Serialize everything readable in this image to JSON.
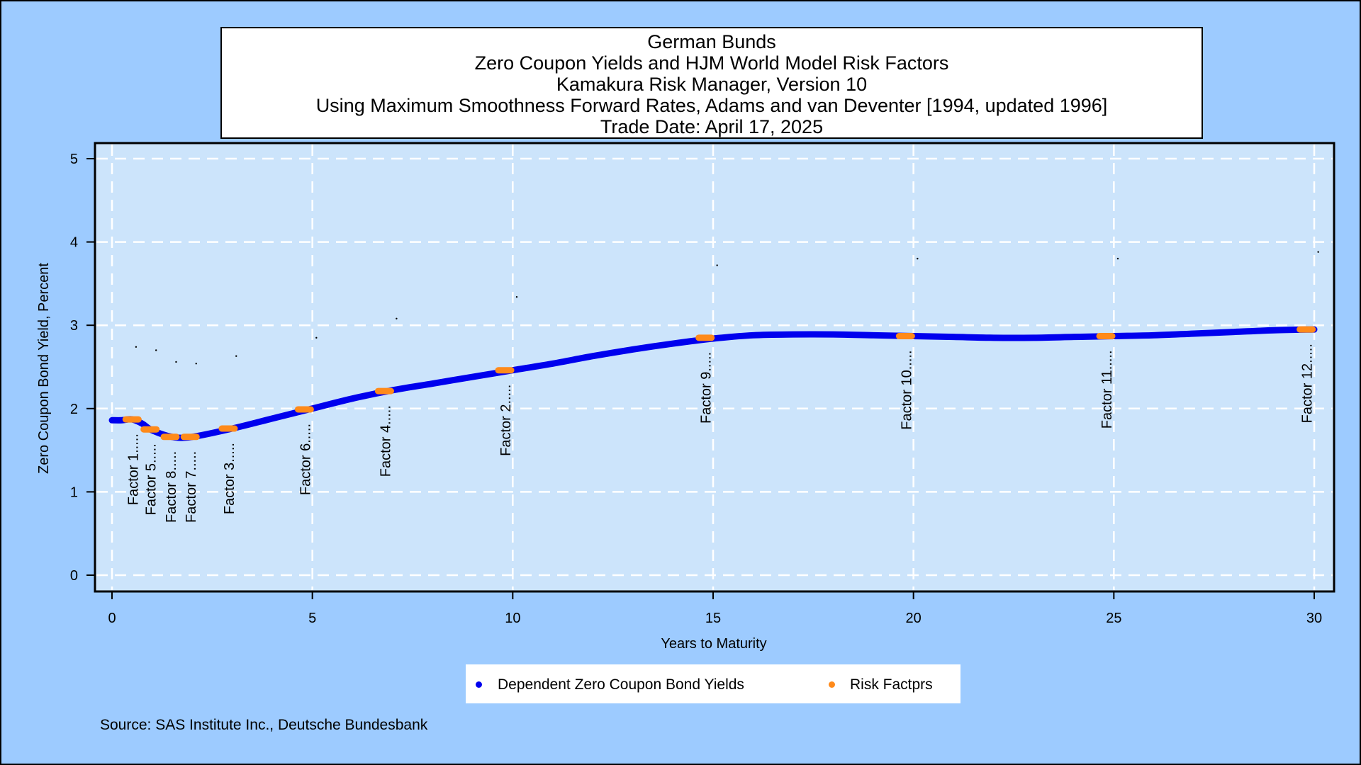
{
  "chart_data": {
    "type": "line",
    "title": [
      "German Bunds",
      "Zero Coupon Yields and HJM World Model Risk Factors",
      "Kamakura Risk Manager, Version 10",
      "Using Maximum Smoothness Forward Rates, Adams and van Deventer [1994, updated 1996]",
      "Trade Date: April 17, 2025"
    ],
    "xlabel": "Years to Maturity",
    "ylabel": "Zero Coupon Bond Yield, Percent",
    "xlim": [
      0,
      30
    ],
    "ylim": [
      0,
      5
    ],
    "xticks": [
      "0",
      "5",
      "10",
      "15",
      "20",
      "25",
      "30"
    ],
    "yticks": [
      "0",
      "1",
      "2",
      "3",
      "4",
      "5"
    ],
    "grid": true,
    "legend_position": "bottom",
    "colors": {
      "curve": "#0000ee",
      "factor": "#ff8a1a",
      "plot_bg": "#cce4fb",
      "page_bg": "#9dcbff"
    },
    "series": [
      {
        "name": "Dependent Zero Coupon Bond Yields",
        "x": [
          0,
          0.25,
          0.5,
          0.75,
          1,
          1.5,
          2,
          3,
          4,
          5,
          6,
          7,
          8,
          9,
          10,
          11,
          12,
          13,
          14,
          15,
          16,
          17,
          18,
          19,
          20,
          21,
          22,
          23,
          24,
          25,
          26,
          27,
          28,
          29,
          30
        ],
        "y": [
          1.86,
          1.86,
          1.87,
          1.82,
          1.74,
          1.66,
          1.66,
          1.76,
          1.88,
          2.0,
          2.12,
          2.22,
          2.3,
          2.38,
          2.46,
          2.54,
          2.63,
          2.71,
          2.78,
          2.84,
          2.88,
          2.89,
          2.89,
          2.88,
          2.87,
          2.86,
          2.85,
          2.85,
          2.86,
          2.87,
          2.88,
          2.9,
          2.92,
          2.94,
          2.95
        ]
      },
      {
        "name": "Risk Factprs",
        "factors": [
          {
            "label": "Factor 1.....",
            "x": 0.5,
            "y": 1.87
          },
          {
            "label": "Factor 5.....",
            "x": 0.95,
            "y": 1.75
          },
          {
            "label": "Factor 8.....",
            "x": 1.45,
            "y": 1.66
          },
          {
            "label": "Factor 7.....",
            "x": 1.95,
            "y": 1.66
          },
          {
            "label": "Factor 3.....",
            "x": 2.9,
            "y": 1.76
          },
          {
            "label": "Factor 6.....",
            "x": 4.8,
            "y": 1.99
          },
          {
            "label": "Factor 4.....",
            "x": 6.8,
            "y": 2.21
          },
          {
            "label": "Factor 2.....",
            "x": 9.8,
            "y": 2.46
          },
          {
            "label": "Factor 9.....",
            "x": 14.8,
            "y": 2.85
          },
          {
            "label": "Factor 10.....",
            "x": 19.8,
            "y": 2.87
          },
          {
            "label": "Factor 11.....",
            "x": 24.8,
            "y": 2.87
          },
          {
            "label": "Factor 12.....",
            "x": 29.8,
            "y": 2.95
          }
        ]
      }
    ],
    "specks": [
      {
        "x": 0.6,
        "y": 2.74
      },
      {
        "x": 1.1,
        "y": 2.7
      },
      {
        "x": 1.6,
        "y": 2.56
      },
      {
        "x": 2.1,
        "y": 2.54
      },
      {
        "x": 3.1,
        "y": 2.63
      },
      {
        "x": 5.1,
        "y": 2.85
      },
      {
        "x": 7.1,
        "y": 3.08
      },
      {
        "x": 10.1,
        "y": 3.34
      },
      {
        "x": 15.1,
        "y": 3.72
      },
      {
        "x": 20.1,
        "y": 3.8
      },
      {
        "x": 25.1,
        "y": 3.8
      },
      {
        "x": 30.1,
        "y": 3.88
      }
    ]
  },
  "legend": {
    "items": [
      {
        "label": "Dependent Zero Coupon Bond Yields",
        "color": "#0000ee"
      },
      {
        "label": "Risk Factprs",
        "color": "#ff8a1a"
      }
    ]
  },
  "source": "Source: SAS Institute Inc., Deutsche Bundesbank"
}
